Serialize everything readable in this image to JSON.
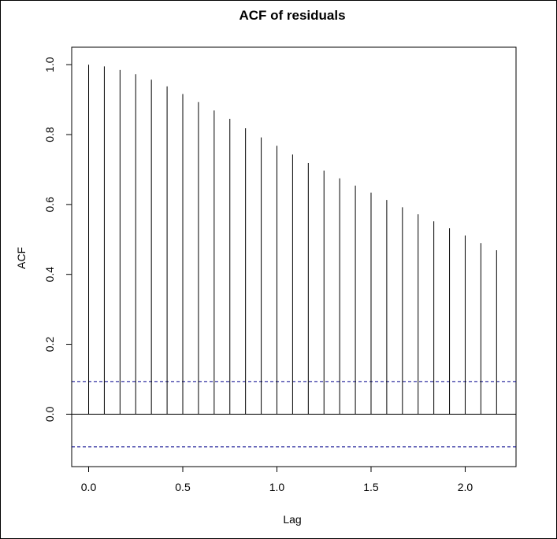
{
  "chart_data": {
    "type": "bar",
    "title": "ACF of residuals",
    "xlabel": "Lag",
    "ylabel": "ACF",
    "x": [
      0.0,
      0.0833,
      0.1667,
      0.25,
      0.3333,
      0.4167,
      0.5,
      0.5833,
      0.6667,
      0.75,
      0.8333,
      0.9167,
      1.0,
      1.0833,
      1.1667,
      1.25,
      1.3333,
      1.4167,
      1.5,
      1.5833,
      1.6667,
      1.75,
      1.8333,
      1.9167,
      2.0,
      2.0833,
      2.1667
    ],
    "values": [
      1.0,
      0.995,
      0.985,
      0.973,
      0.957,
      0.938,
      0.916,
      0.893,
      0.869,
      0.845,
      0.818,
      0.792,
      0.768,
      0.743,
      0.719,
      0.697,
      0.675,
      0.654,
      0.634,
      0.613,
      0.592,
      0.572,
      0.552,
      0.532,
      0.511,
      0.489,
      0.469
    ],
    "xlim": [
      -0.09,
      2.27
    ],
    "ylim": [
      -0.15,
      1.05
    ],
    "xticks": [
      0.0,
      0.5,
      1.0,
      1.5,
      2.0
    ],
    "xtick_labels": [
      "0.0",
      "0.5",
      "1.0",
      "1.5",
      "2.0"
    ],
    "yticks": [
      0.0,
      0.2,
      0.4,
      0.6,
      0.8,
      1.0
    ],
    "ytick_labels": [
      "0.0",
      "0.2",
      "0.4",
      "0.6",
      "0.8",
      "1.0"
    ],
    "confidence_bounds": [
      0.0935,
      -0.0935
    ],
    "confidence_color": "#00008b",
    "bar_color": "#000000",
    "grid": false,
    "legend": "none"
  }
}
